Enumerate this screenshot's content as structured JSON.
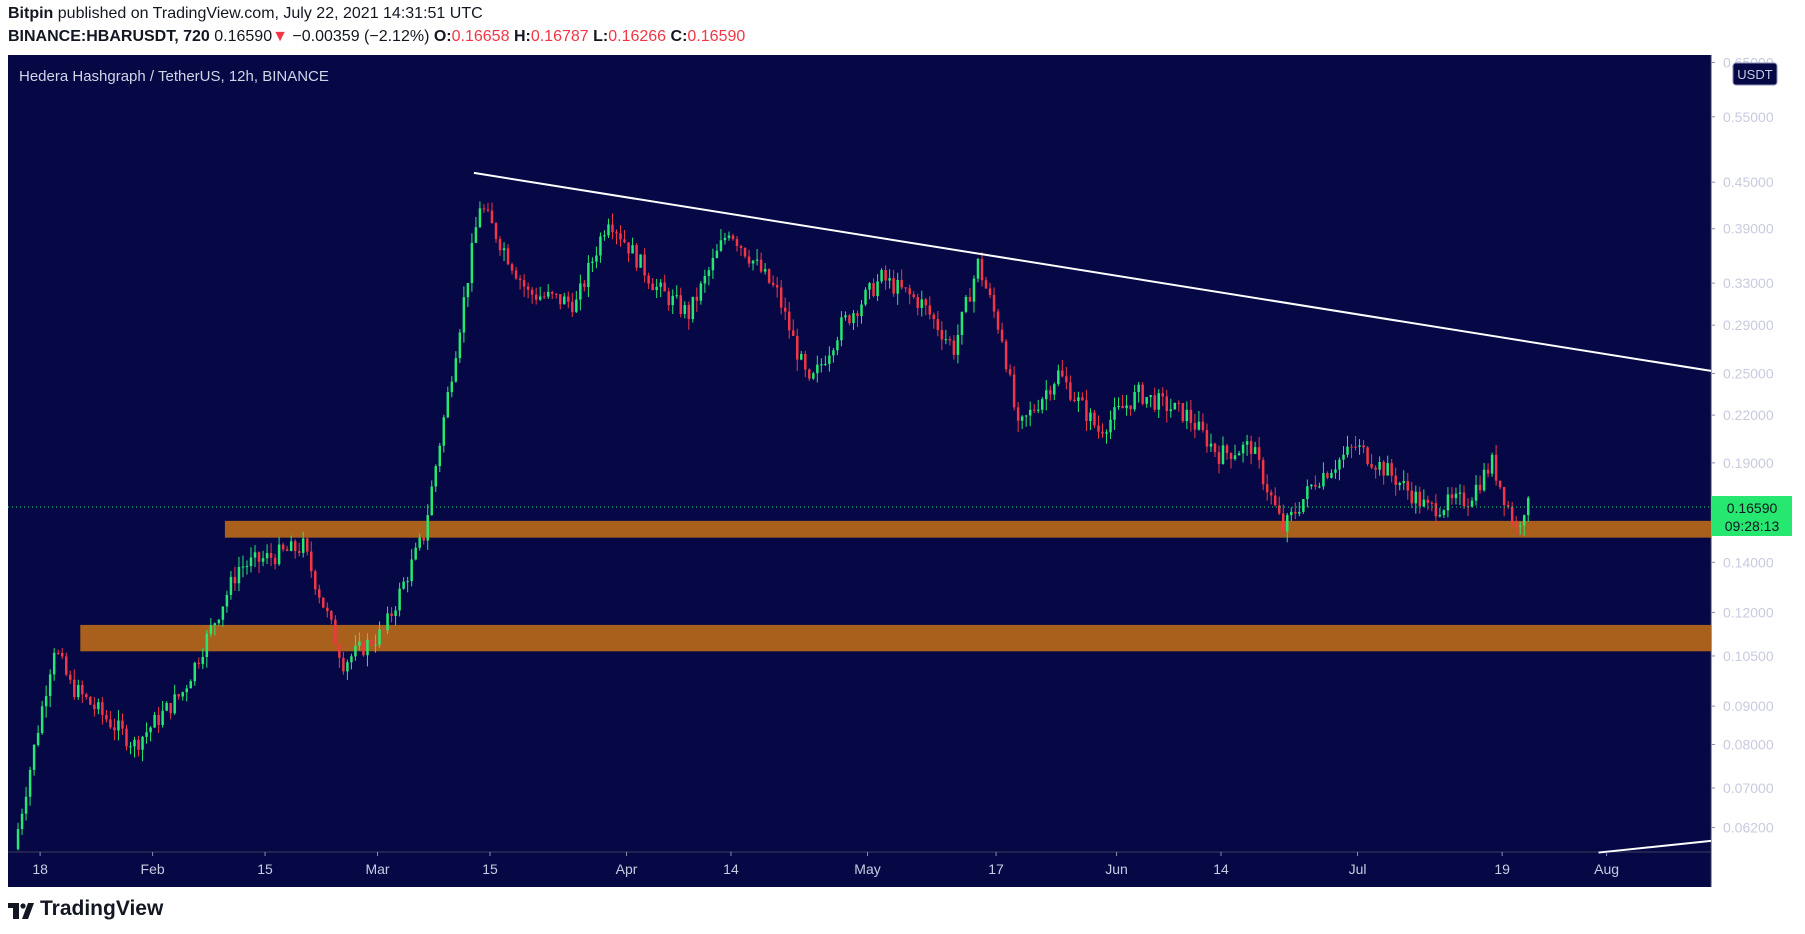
{
  "header": {
    "publisher": "Bitpin",
    "published_text": "published on TradingView.com, July 22, 2021 14:31:51 UTC",
    "symbol": "BINANCE:HBARUSDT, 720",
    "last": "0.16590",
    "change_arrow": "▼",
    "change": "−0.00359 (−2.12%)",
    "o_label": "O:",
    "o": "0.16658",
    "h_label": "H:",
    "h": "0.16787",
    "l_label": "L:",
    "l": "0.16266",
    "c_label": "C:",
    "c": "0.16590"
  },
  "branding": {
    "logo_text": "TradingView",
    "logo_icon": "tradingview-logo-icon"
  },
  "colors": {
    "background": "#050845",
    "up": "#26e870",
    "down": "#f23645",
    "trendline": "#ffffff",
    "zone": "#a9601c",
    "price_tag": "#26e870"
  },
  "chart_data": {
    "type": "candlestick",
    "title": "Hedera Hashgraph / TetherUS, 12h, BINANCE",
    "currency_label": "USDT",
    "y_scale": "log",
    "ylim": [
      0.0575,
      0.665
    ],
    "y_ticks": [
      "0.65000",
      "0.55000",
      "0.45000",
      "0.39000",
      "0.33000",
      "0.29000",
      "0.25000",
      "0.22000",
      "0.19000",
      "0.14000",
      "0.12000",
      "0.10500",
      "0.09000",
      "0.08000",
      "0.07000",
      "0.06200"
    ],
    "x_ticks": [
      "18",
      "Feb",
      "15",
      "Mar",
      "15",
      "Apr",
      "14",
      "May",
      "17",
      "Jun",
      "14",
      "Jul",
      "19",
      "Aug"
    ],
    "x_tick_dates": [
      "2021-01-18",
      "2021-02-01",
      "2021-02-15",
      "2021-03-01",
      "2021-03-15",
      "2021-04-01",
      "2021-04-14",
      "2021-05-01",
      "2021-05-17",
      "2021-06-01",
      "2021-06-14",
      "2021-07-01",
      "2021-07-19",
      "2021-08-01"
    ],
    "xlim": [
      "2021-01-14",
      "2021-08-14"
    ],
    "last_price": {
      "value": 0.1659,
      "label": "0.16590",
      "countdown": "09:28:13"
    },
    "trendlines": [
      {
        "from": {
          "date": "2021-03-13",
          "price": 0.463
        },
        "to": {
          "date": "2021-08-14",
          "price": 0.252
        }
      },
      {
        "from": {
          "date": "2021-07-31",
          "price": 0.0574
        },
        "to": {
          "date": "2021-08-14",
          "price": 0.0595
        }
      }
    ],
    "zones": [
      {
        "from_date": "2021-02-10",
        "low": 0.151,
        "high": 0.159
      },
      {
        "from_date": "2021-01-23",
        "low": 0.1065,
        "high": 0.1155
      }
    ],
    "key_points": [
      {
        "date": "2021-01-15",
        "price": 0.058
      },
      {
        "date": "2021-01-20",
        "price": 0.108
      },
      {
        "date": "2021-01-22",
        "price": 0.096
      },
      {
        "date": "2021-01-30",
        "price": 0.08
      },
      {
        "date": "2021-02-05",
        "price": 0.094
      },
      {
        "date": "2021-02-12",
        "price": 0.138
      },
      {
        "date": "2021-02-20",
        "price": 0.147
      },
      {
        "date": "2021-02-25",
        "price": 0.103
      },
      {
        "date": "2021-03-02",
        "price": 0.113
      },
      {
        "date": "2021-03-07",
        "price": 0.152
      },
      {
        "date": "2021-03-11",
        "price": 0.27
      },
      {
        "date": "2021-03-14",
        "price": 0.42
      },
      {
        "date": "2021-03-20",
        "price": 0.32
      },
      {
        "date": "2021-03-26",
        "price": 0.31
      },
      {
        "date": "2021-03-30",
        "price": 0.405
      },
      {
        "date": "2021-04-05",
        "price": 0.325
      },
      {
        "date": "2021-04-09",
        "price": 0.3
      },
      {
        "date": "2021-04-14",
        "price": 0.39
      },
      {
        "date": "2021-04-20",
        "price": 0.32
      },
      {
        "date": "2021-04-24",
        "price": 0.24
      },
      {
        "date": "2021-04-28",
        "price": 0.29
      },
      {
        "date": "2021-05-03",
        "price": 0.335
      },
      {
        "date": "2021-05-08",
        "price": 0.31
      },
      {
        "date": "2021-05-12",
        "price": 0.27
      },
      {
        "date": "2021-05-15",
        "price": 0.35
      },
      {
        "date": "2021-05-18",
        "price": 0.28
      },
      {
        "date": "2021-05-20",
        "price": 0.21
      },
      {
        "date": "2021-05-25",
        "price": 0.25
      },
      {
        "date": "2021-05-30",
        "price": 0.21
      },
      {
        "date": "2021-06-04",
        "price": 0.235
      },
      {
        "date": "2021-06-10",
        "price": 0.22
      },
      {
        "date": "2021-06-14",
        "price": 0.195
      },
      {
        "date": "2021-06-18",
        "price": 0.2
      },
      {
        "date": "2021-06-22",
        "price": 0.155
      },
      {
        "date": "2021-06-26",
        "price": 0.18
      },
      {
        "date": "2021-07-01",
        "price": 0.2
      },
      {
        "date": "2021-07-05",
        "price": 0.185
      },
      {
        "date": "2021-07-10",
        "price": 0.165
      },
      {
        "date": "2021-07-15",
        "price": 0.17
      },
      {
        "date": "2021-07-18",
        "price": 0.19
      },
      {
        "date": "2021-07-21",
        "price": 0.155
      },
      {
        "date": "2021-07-22",
        "price": 0.1659
      }
    ]
  }
}
